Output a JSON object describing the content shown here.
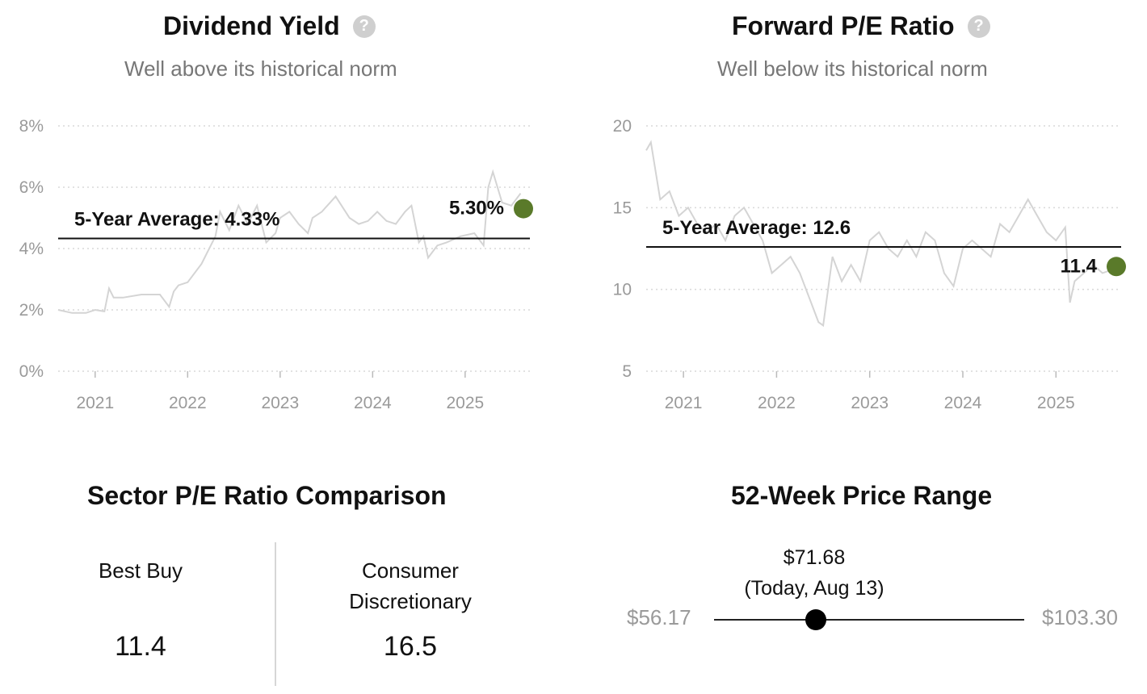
{
  "panels": {
    "dividend": {
      "title": "Dividend Yield",
      "subtitle": "Well above its historical norm",
      "average_label": "5-Year Average: 4.33%",
      "current_label": "5.30%",
      "accent_color": "#5a7a2a",
      "help_icon": "question-circle-icon"
    },
    "pe": {
      "title": "Forward P/E Ratio",
      "subtitle": "Well below its historical norm",
      "average_label": "5-Year Average: 12.6",
      "current_label": "11.4",
      "accent_color": "#5a7a2a",
      "help_icon": "question-circle-icon"
    }
  },
  "sector": {
    "title": "Sector P/E Ratio Comparison",
    "company_name": "Best Buy",
    "company_value": "11.4",
    "sector_name_line1": "Consumer",
    "sector_name_line2": "Discretionary",
    "sector_value": "16.5"
  },
  "range": {
    "title": "52-Week Price Range",
    "low": "$56.17",
    "high": "$103.30",
    "current_price": "$71.68",
    "current_date": "(Today, Aug 13)",
    "current_value": 71.68,
    "low_value": 56.17,
    "high_value": 103.3
  },
  "chart_data": [
    {
      "type": "line",
      "title": "Dividend Yield",
      "ylim": [
        0,
        8
      ],
      "y_ticks": [
        "0%",
        "2%",
        "4%",
        "6%",
        "8%"
      ],
      "x_ticks": [
        "2021",
        "2022",
        "2023",
        "2024",
        "2025"
      ],
      "xlim": [
        2020.6,
        2025.7
      ],
      "grid": true,
      "average": 4.33,
      "current": {
        "x": 2025.62,
        "y": 5.3
      },
      "series": [
        {
          "x": [
            2020.6,
            2020.75,
            2020.9,
            2021.0,
            2021.1,
            2021.15,
            2021.2,
            2021.3,
            2021.5,
            2021.7,
            2021.8,
            2021.85,
            2021.9,
            2022.0,
            2022.15,
            2022.2,
            2022.3,
            2022.35,
            2022.45,
            2022.55,
            2022.65,
            2022.75,
            2022.85,
            2022.95,
            2023.0,
            2023.1,
            2023.2,
            2023.3,
            2023.35,
            2023.45,
            2023.6,
            2023.75,
            2023.85,
            2023.95,
            2024.05,
            2024.15,
            2024.25,
            2024.35,
            2024.42,
            2024.5,
            2024.55,
            2024.6,
            2024.7,
            2024.8,
            2024.95,
            2025.1,
            2025.2,
            2025.25,
            2025.3,
            2025.4,
            2025.5,
            2025.6
          ],
          "y": [
            2.0,
            1.9,
            1.9,
            2.0,
            1.95,
            2.7,
            2.4,
            2.4,
            2.5,
            2.5,
            2.1,
            2.6,
            2.8,
            2.9,
            3.5,
            3.8,
            4.4,
            5.2,
            4.6,
            5.4,
            4.8,
            5.4,
            4.2,
            4.5,
            5.0,
            5.2,
            4.8,
            4.5,
            5.0,
            5.2,
            5.7,
            5.0,
            4.8,
            4.9,
            5.2,
            4.9,
            4.8,
            5.2,
            5.4,
            4.2,
            4.4,
            3.7,
            4.1,
            4.2,
            4.4,
            4.5,
            4.1,
            6.0,
            6.5,
            5.5,
            5.4,
            5.8
          ]
        }
      ]
    },
    {
      "type": "line",
      "title": "Forward P/E Ratio",
      "ylim": [
        5,
        20
      ],
      "y_ticks": [
        "5",
        "10",
        "15",
        "20"
      ],
      "x_ticks": [
        "2021",
        "2022",
        "2023",
        "2024",
        "2025"
      ],
      "xlim": [
        2020.6,
        2025.7
      ],
      "grid": true,
      "average": 12.6,
      "current": {
        "x": 2025.62,
        "y": 11.4
      },
      "series": [
        {
          "x": [
            2020.6,
            2020.65,
            2020.75,
            2020.85,
            2020.95,
            2021.05,
            2021.15,
            2021.25,
            2021.35,
            2021.45,
            2021.55,
            2021.65,
            2021.75,
            2021.85,
            2021.95,
            2022.05,
            2022.15,
            2022.25,
            2022.35,
            2022.45,
            2022.5,
            2022.6,
            2022.7,
            2022.8,
            2022.9,
            2023.0,
            2023.1,
            2023.2,
            2023.3,
            2023.4,
            2023.5,
            2023.6,
            2023.7,
            2023.8,
            2023.9,
            2024.0,
            2024.1,
            2024.2,
            2024.3,
            2024.4,
            2024.5,
            2024.6,
            2024.7,
            2024.8,
            2024.9,
            2025.0,
            2025.1,
            2025.15,
            2025.2,
            2025.3,
            2025.4,
            2025.5,
            2025.6
          ],
          "y": [
            18.5,
            19.0,
            15.5,
            16.0,
            14.5,
            15.0,
            14.0,
            13.5,
            14.0,
            13.0,
            14.5,
            15.0,
            14.0,
            13.0,
            11.0,
            11.5,
            12.0,
            11.0,
            9.5,
            8.0,
            7.8,
            12.0,
            10.5,
            11.5,
            10.5,
            13.0,
            13.5,
            12.5,
            12.0,
            13.0,
            12.0,
            13.5,
            13.0,
            11.0,
            10.2,
            12.5,
            13.0,
            12.5,
            12.0,
            14.0,
            13.5,
            14.5,
            15.5,
            14.5,
            13.5,
            13.0,
            13.8,
            9.2,
            10.5,
            11.0,
            11.5,
            11.0,
            11.2
          ]
        }
      ]
    }
  ]
}
